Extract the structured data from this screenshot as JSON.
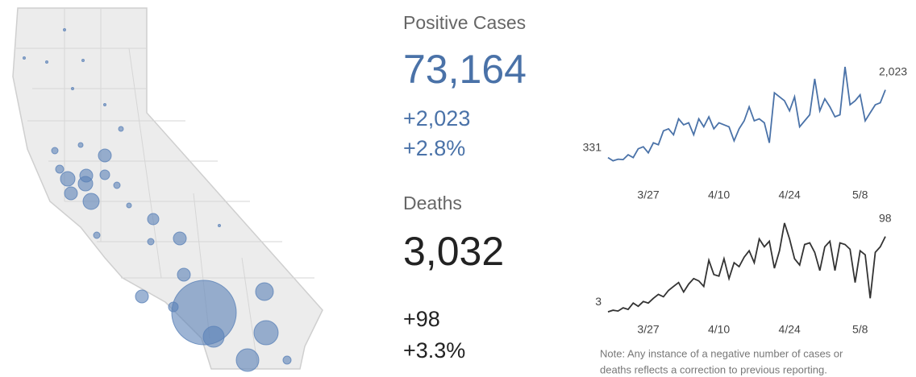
{
  "stats": {
    "cases": {
      "label": "Positive Cases",
      "total": "73,164",
      "change": "+2,023",
      "percent": "+2.8%"
    },
    "deaths": {
      "label": "Deaths",
      "total": "3,032",
      "change": "+98",
      "percent": "+3.3%"
    },
    "note": [
      "Note: Any instance of a negative number of cases or",
      "deaths reflects a correction to previous reporting."
    ]
  },
  "chart_data": [
    {
      "type": "line",
      "name": "cases",
      "color": "#4a72a8",
      "categories": [
        null,
        null,
        null,
        null,
        null,
        null,
        null,
        null,
        "3/27",
        null,
        null,
        null,
        null,
        null,
        null,
        null,
        null,
        null,
        null,
        null,
        null,
        null,
        "4/10",
        null,
        null,
        null,
        null,
        null,
        null,
        null,
        null,
        null,
        null,
        null,
        null,
        null,
        "4/24",
        null,
        null,
        null,
        null,
        null,
        null,
        null,
        null,
        null,
        null,
        null,
        null,
        null,
        "5/8",
        null,
        null,
        null,
        null,
        null
      ],
      "values": [
        331,
        250,
        290,
        280,
        400,
        330,
        550,
        600,
        450,
        700,
        650,
        1000,
        1050,
        900,
        1300,
        1150,
        1200,
        900,
        1300,
        1100,
        1350,
        1050,
        1200,
        1150,
        1100,
        750,
        1050,
        1250,
        1600,
        1250,
        1300,
        1200,
        700,
        1950,
        1850,
        1750,
        1500,
        1850,
        1100,
        1250,
        1400,
        2300,
        1500,
        1800,
        1600,
        1350,
        1400,
        2600,
        1650,
        1750,
        1900,
        1250,
        1450,
        1650,
        1700,
        2023
      ],
      "value_labels": [
        "331",
        null,
        null,
        null,
        null,
        null,
        null,
        null,
        null,
        null,
        null,
        null,
        null,
        null,
        null,
        null,
        null,
        null,
        null,
        null,
        null,
        null,
        null,
        null,
        null,
        null,
        null,
        null,
        null,
        null,
        null,
        null,
        null,
        null,
        null,
        null,
        null,
        null,
        null,
        null,
        null,
        null,
        null,
        null,
        null,
        null,
        null,
        null,
        null,
        null,
        null,
        null,
        null,
        null,
        null,
        "2,023"
      ],
      "ylim": [
        0,
        2700
      ]
    },
    {
      "type": "line",
      "name": "deaths",
      "color": "#333333",
      "categories": [
        null,
        null,
        null,
        null,
        null,
        null,
        null,
        null,
        "3/27",
        null,
        null,
        null,
        null,
        null,
        null,
        null,
        null,
        null,
        null,
        null,
        null,
        null,
        "4/10",
        null,
        null,
        null,
        null,
        null,
        null,
        null,
        null,
        null,
        null,
        null,
        null,
        null,
        "4/24",
        null,
        null,
        null,
        null,
        null,
        null,
        null,
        null,
        null,
        null,
        null,
        null,
        null,
        "5/8",
        null,
        null,
        null,
        null,
        null
      ],
      "values": [
        3,
        5,
        4,
        8,
        6,
        14,
        10,
        16,
        14,
        20,
        25,
        22,
        30,
        35,
        40,
        28,
        38,
        45,
        42,
        35,
        68,
        50,
        48,
        70,
        45,
        65,
        60,
        72,
        80,
        65,
        95,
        85,
        92,
        58,
        80,
        115,
        95,
        70,
        62,
        88,
        90,
        78,
        55,
        85,
        92,
        55,
        90,
        88,
        82,
        40,
        80,
        75,
        20,
        78,
        85,
        98
      ],
      "ylim": [
        0,
        120
      ]
    }
  ]
}
